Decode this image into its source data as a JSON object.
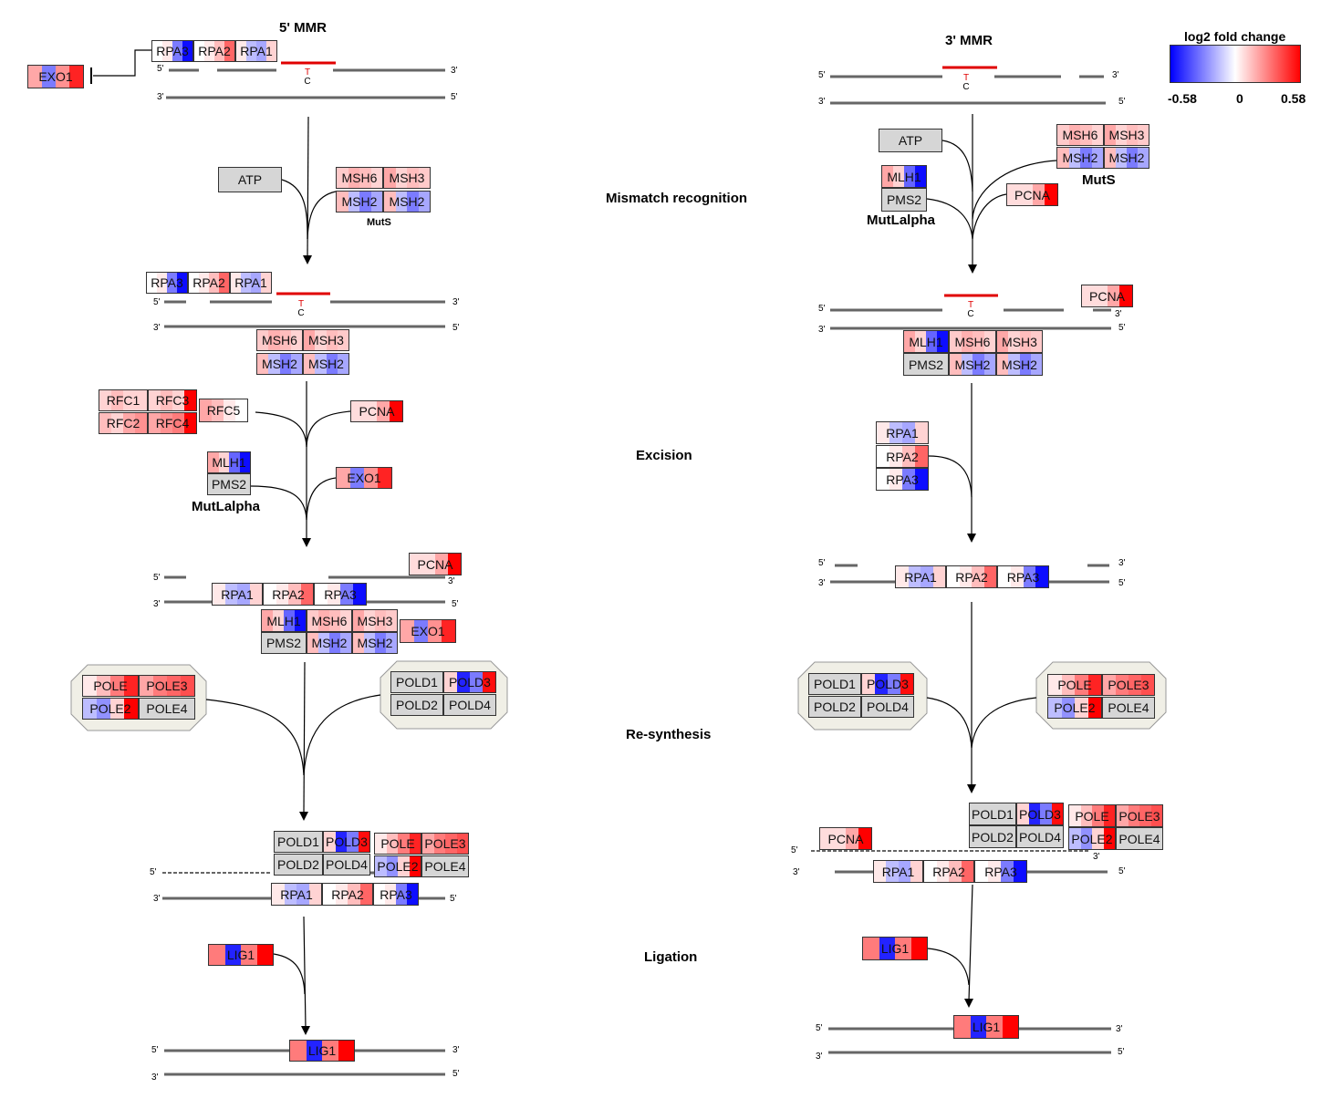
{
  "titles": {
    "left": "5' MMR",
    "right": "3' MMR"
  },
  "stages": {
    "recognition": "Mismatch recognition",
    "excision": "Excision",
    "resynthesis": "Re-synthesis",
    "ligation": "Ligation"
  },
  "complex_labels": {
    "muts": "MutS",
    "mutlalpha": "MutLalpha"
  },
  "legend": {
    "title": "log2 fold change",
    "min_label": "-0.58",
    "mid_label": "0",
    "max_label": "0.58",
    "min_color": "#0000ff",
    "mid_color": "#ffffff",
    "max_color": "#ff0000"
  },
  "strand_ends": {
    "five": "5'",
    "three": "3'"
  },
  "mismatch": {
    "top": "T",
    "bottom": "C"
  },
  "plain_nodes": {
    "atp": "ATP"
  },
  "genes": {
    "RPA1": {
      "label": "RPA1",
      "values": [
        0.05,
        -0.15,
        -0.2,
        0.1
      ]
    },
    "RPA2": {
      "label": "RPA2",
      "values": [
        0.0,
        0.05,
        0.15,
        0.35
      ]
    },
    "RPA3": {
      "label": "RPA3",
      "values": [
        0.0,
        0.05,
        -0.3,
        -0.55
      ]
    },
    "EXO1": {
      "label": "EXO1",
      "values": [
        0.2,
        -0.3,
        0.25,
        0.5
      ]
    },
    "MSH6": {
      "label": "MSH6",
      "values": [
        0.12,
        0.18,
        0.15,
        0.1
      ]
    },
    "MSH3": {
      "label": "MSH3",
      "values": [
        0.2,
        0.1,
        0.15,
        0.12
      ]
    },
    "MSH2": {
      "label": "MSH2",
      "values": [
        0.15,
        -0.15,
        -0.3,
        -0.2
      ]
    },
    "PCNA": {
      "label": "PCNA",
      "values": [
        0.08,
        0.08,
        0.2,
        0.58
      ]
    },
    "RFC1": {
      "label": "RFC1",
      "values": [
        0.1,
        0.15,
        0.1,
        0.1
      ]
    },
    "RFC2": {
      "label": "RFC2",
      "values": [
        0.15,
        0.1,
        0.2,
        0.25
      ]
    },
    "RFC3": {
      "label": "RFC3",
      "values": [
        0.1,
        0.15,
        0.1,
        0.58
      ]
    },
    "RFC4": {
      "label": "RFC4",
      "values": [
        0.2,
        0.25,
        0.3,
        0.58
      ]
    },
    "RFC5": {
      "label": "RFC5",
      "values": [
        0.2,
        0.15,
        0.05,
        0.0
      ]
    },
    "MLH1": {
      "label": "MLH1",
      "values": [
        0.2,
        0.1,
        -0.35,
        -0.55
      ]
    },
    "POLE": {
      "label": "POLE",
      "values": [
        0.05,
        0.15,
        0.3,
        0.5
      ]
    },
    "POLE2": {
      "label": "POLE2",
      "values": [
        -0.15,
        -0.25,
        0.1,
        0.58
      ]
    },
    "POLE3": {
      "label": "POLE3",
      "values": [
        0.2,
        0.3,
        0.35,
        0.4
      ]
    },
    "POLD3": {
      "label": "POLD3",
      "values": [
        0.1,
        -0.5,
        -0.3,
        0.55
      ]
    },
    "LIG1": {
      "label": "LIG1",
      "values": [
        0.3,
        -0.5,
        0.3,
        0.58
      ]
    }
  },
  "gray_genes": {
    "PMS2": {
      "label": "PMS2"
    },
    "POLE4": {
      "label": "POLE4"
    },
    "POLD1": {
      "label": "POLD1"
    },
    "POLD2": {
      "label": "POLD2"
    },
    "POLD4": {
      "label": "POLD4"
    }
  }
}
